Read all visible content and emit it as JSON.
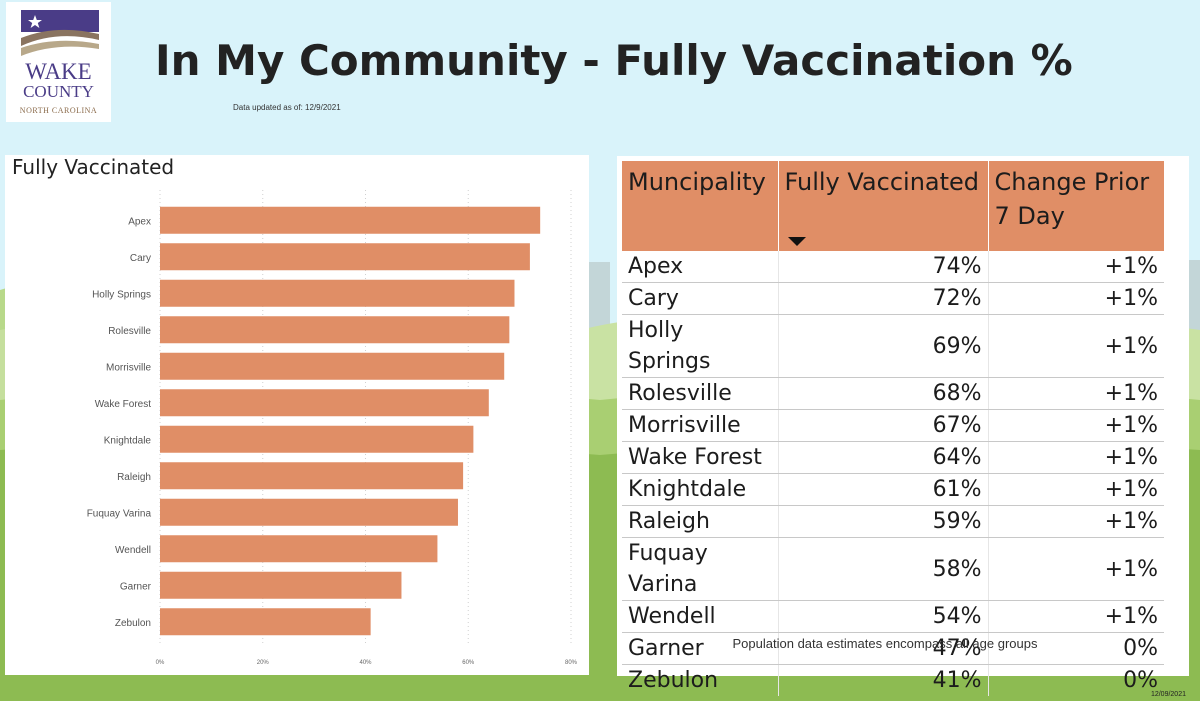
{
  "logo": {
    "line1": "WAKE",
    "line2": "COUNTY",
    "line3": "NORTH CAROLINA"
  },
  "title": "In My Community - Fully Vaccination %",
  "updated_label": "Data updated as of: 12/9/2021",
  "colors": {
    "bar": "#e08e66",
    "header": "#e08e66",
    "sky": "#d9f3fa",
    "grass": "#8dbb52"
  },
  "chart_data": {
    "type": "bar",
    "orientation": "horizontal",
    "title": "Fully Vaccinated",
    "categories": [
      "Apex",
      "Cary",
      "Holly Springs",
      "Rolesville",
      "Morrisville",
      "Wake Forest",
      "Knightdale",
      "Raleigh",
      "Fuquay Varina",
      "Wendell",
      "Garner",
      "Zebulon"
    ],
    "values": [
      74,
      72,
      69,
      68,
      67,
      64,
      61,
      59,
      58,
      54,
      47,
      41
    ],
    "xlim": [
      0,
      80
    ],
    "xticks": [
      "0%",
      "20%",
      "40%",
      "60%",
      "80%"
    ],
    "grid": true
  },
  "table": {
    "headers": [
      "Muncipality",
      "Fully Vaccinated",
      "Change Prior 7 Day"
    ],
    "sort_icon": "sort-descending-icon",
    "rows": [
      [
        "Apex",
        "74%",
        "+1%"
      ],
      [
        "Cary",
        "72%",
        "+1%"
      ],
      [
        "Holly Springs",
        "69%",
        "+1%"
      ],
      [
        "Rolesville",
        "68%",
        "+1%"
      ],
      [
        "Morrisville",
        "67%",
        "+1%"
      ],
      [
        "Wake Forest",
        "64%",
        "+1%"
      ],
      [
        "Knightdale",
        "61%",
        "+1%"
      ],
      [
        "Raleigh",
        "59%",
        "+1%"
      ],
      [
        "Fuquay Varina",
        "58%",
        "+1%"
      ],
      [
        "Wendell",
        "54%",
        "+1%"
      ],
      [
        "Garner",
        "47%",
        "0%"
      ],
      [
        "Zebulon",
        "41%",
        "0%"
      ]
    ]
  },
  "footnote": "Population data estimates encompass all age groups",
  "date_stamp": "12/09/2021"
}
